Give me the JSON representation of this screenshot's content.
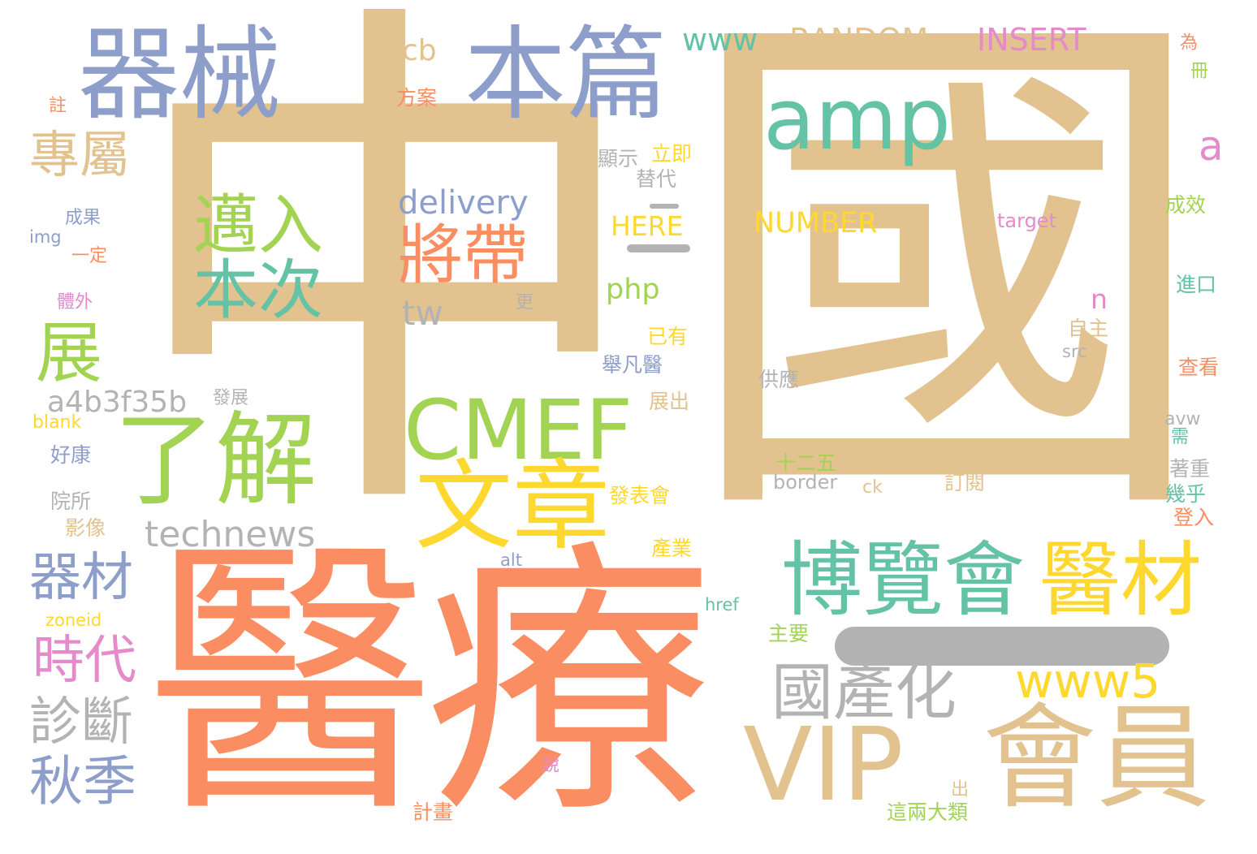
{
  "colors": {
    "tan": "#E2C28F",
    "salmon": "#FA8E62",
    "periwinkle": "#8E9ECB",
    "green": "#A2D352",
    "teal": "#64C2A5",
    "yellow": "#FFD82F",
    "pink": "#E58ACA",
    "gray": "#B3B3B3"
  },
  "words": {
    "zhong": "中",
    "guo": "國",
    "yiliao": "醫療",
    "qixie": "器械",
    "benpian": "本篇",
    "amp": "amp",
    "cmef": "CMEF",
    "wenzhang": "文章",
    "liaojie": "了解",
    "bolanhui": "博覽會",
    "yicai": "醫材",
    "vip": "VIP",
    "huiyuan": "會員",
    "www5": "www5",
    "guochanhua": "國產化",
    "maoru": "邁入",
    "benci": "本次",
    "jiangdai": "將帶",
    "zhuanshu": "專屬",
    "zhan": "展",
    "qicai": "器材",
    "shidai": "時代",
    "zhenduan": "診斷",
    "qiuji": "秋季",
    "technews": "technews",
    "a4b": "a4b3f35b",
    "delivery": "delivery",
    "tw": "tw",
    "www": "www",
    "random": "RANDOM",
    "insert": "INSERT",
    "cb": "cb",
    "a": "a",
    "here": "HERE",
    "number": "NUMBER",
    "target": "target",
    "php": "php",
    "n": "n",
    "wei": "為",
    "ce": "冊",
    "fangan": "方案",
    "zhu": "註",
    "xianshi": "顯示",
    "liji": "立即",
    "tidai": "替代",
    "chengxiao": "成效",
    "chengguo": "成果",
    "img": "img",
    "yiding": "一定",
    "jinkou": "進口",
    "geng": "更",
    "tiwai": "體外",
    "yiyou": "已有",
    "zizhu": "自主",
    "src": "src",
    "jufanyi": "舉凡醫",
    "chakan": "查看",
    "gongying": "供應",
    "fazhan": "發展",
    "zhanchu": "展出",
    "avw": "avw",
    "blank": "blank",
    "xu": "需",
    "haokang": "好康",
    "shierwu": "十二五",
    "zhuozhong": "著重",
    "border": "border",
    "ck": "ck",
    "dingyue": "訂閱",
    "jihu": "幾乎",
    "fabiaohui": "發表會",
    "yuansuo": "院所",
    "dengru": "登入",
    "yingxiang": "影像",
    "chanye": "產業",
    "alt": "alt",
    "href": "href",
    "zoneid": "zoneid",
    "zhuyao": "主要",
    "shuo": "說",
    "chu": "出",
    "jihua": "計畫",
    "zheliang": "這兩大類"
  }
}
